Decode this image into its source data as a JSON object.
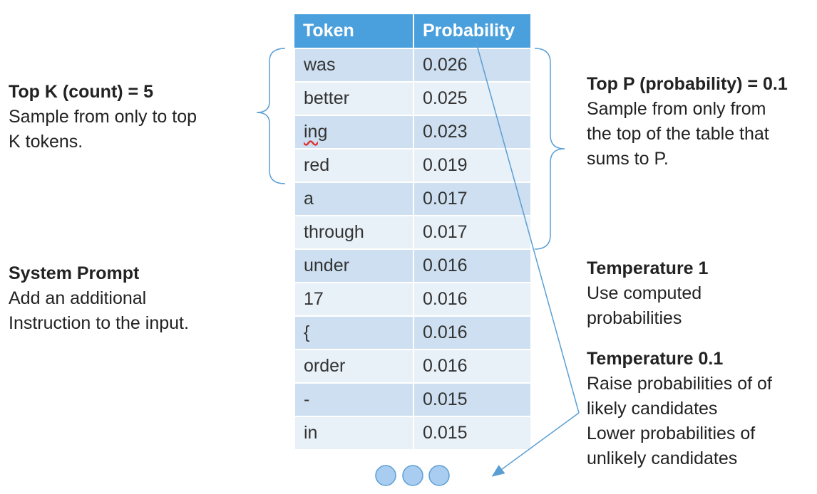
{
  "table": {
    "headers": [
      "Token",
      "Probability"
    ],
    "rows": [
      {
        "token": "was",
        "prob": "0.026"
      },
      {
        "token": "better",
        "prob": "0.025"
      },
      {
        "token": "ing",
        "prob": "0.023"
      },
      {
        "token": "red",
        "prob": "0.019"
      },
      {
        "token": "a",
        "prob": "0.017"
      },
      {
        "token": "through",
        "prob": "0.017"
      },
      {
        "token": "under",
        "prob": "0.016"
      },
      {
        "token": "17",
        "prob": "0.016"
      },
      {
        "token": "{",
        "prob": "0.016"
      },
      {
        "token": "order",
        "prob": "0.016"
      },
      {
        "token": "-",
        "prob": "0.015"
      },
      {
        "token": "in",
        "prob": "0.015"
      }
    ]
  },
  "left_notes": {
    "top_k": {
      "heading": "Top K (count) = 5",
      "lines": [
        "Sample from only to top",
        "K tokens."
      ]
    },
    "system_prompt": {
      "heading": "System Prompt",
      "lines": [
        "Add an additional",
        "Instruction to the input."
      ]
    }
  },
  "right_notes": {
    "top_p": {
      "heading": "Top P (probability) = 0.1",
      "lines": [
        "Sample from only from",
        "the top of the table that",
        "sums to P."
      ]
    },
    "temp1": {
      "heading": "Temperature 1",
      "lines": [
        "Use computed",
        "probabilities"
      ]
    },
    "temp01": {
      "heading": "Temperature 0.1",
      "lines": [
        "Raise probabilities of of",
        "likely candidates",
        "Lower probabilities of",
        "unlikely candidates"
      ]
    }
  },
  "colors": {
    "header": "#4aa0dc",
    "row_dark": "#cddff0",
    "row_light": "#e8f0f8",
    "connector": "#5a9fd4",
    "dots": "#a9cdf0"
  }
}
